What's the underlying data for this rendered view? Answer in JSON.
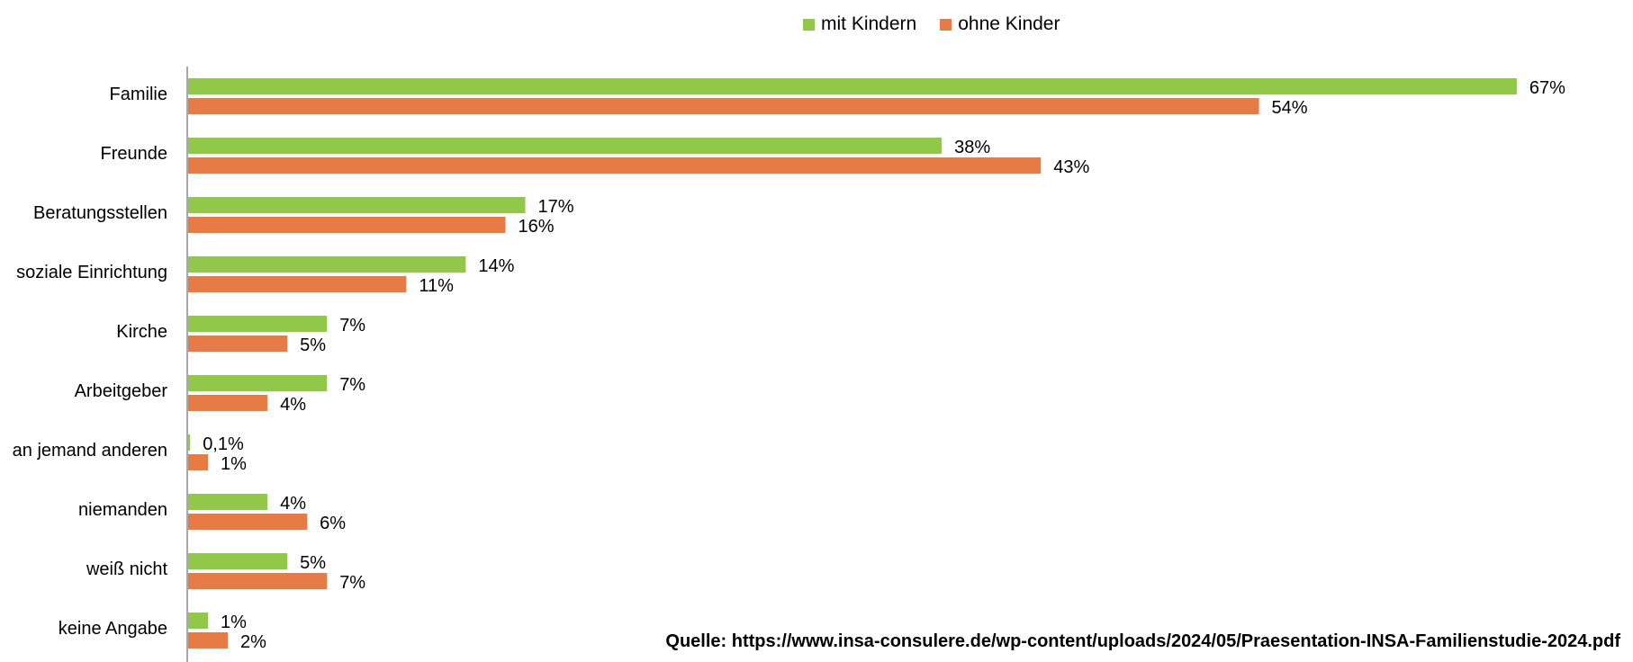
{
  "chart_data": {
    "type": "bar",
    "orientation": "horizontal",
    "categories": [
      "Familie",
      "Freunde",
      "Beratungsstellen",
      "soziale Einrichtung",
      "Kirche",
      "Arbeitgeber",
      "an jemand anderen",
      "niemanden",
      "weiß nicht",
      "keine Angabe"
    ],
    "series": [
      {
        "name": "mit Kindern",
        "color": "#92C84A",
        "values": [
          67,
          38,
          17,
          14,
          7,
          7,
          0.1,
          4,
          5,
          1
        ],
        "labels": [
          "67%",
          "38%",
          "17%",
          "14%",
          "7%",
          "7%",
          "0,1%",
          "4%",
          "5%",
          "1%"
        ]
      },
      {
        "name": "ohne Kinder",
        "color": "#E77B45",
        "values": [
          54,
          43,
          16,
          11,
          5,
          4,
          1,
          6,
          7,
          2
        ],
        "labels": [
          "54%",
          "43%",
          "16%",
          "11%",
          "5%",
          "4%",
          "1%",
          "6%",
          "7%",
          "2%"
        ]
      }
    ],
    "xlim": [
      0,
      70
    ],
    "grid": false,
    "legend_position": "top"
  },
  "source_text": "Quelle: https://www.insa-consulere.de/wp-content/uploads/2024/05/Praesentation-INSA-Familienstudie-2024.pdf"
}
